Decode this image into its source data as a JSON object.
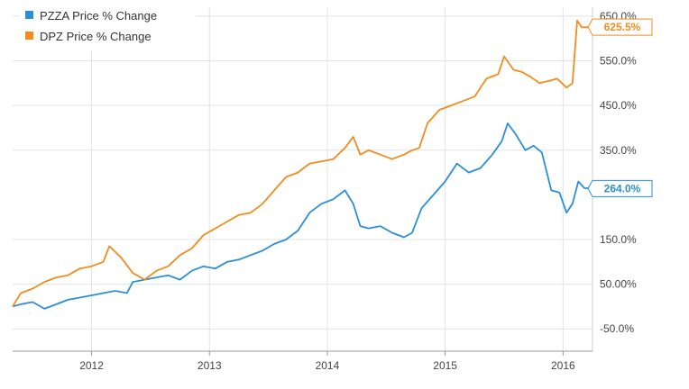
{
  "chart_data": {
    "type": "line",
    "title": "",
    "xlabel": "",
    "ylabel": "",
    "grid": true,
    "legend_position": "top-left",
    "x_ticks": [
      "2012",
      "2013",
      "2014",
      "2015",
      "2016"
    ],
    "y_ticks": [
      "650.0%",
      "550.0%",
      "450.0%",
      "350.0%",
      "150.0%",
      "50.00%",
      "-50.0%"
    ],
    "y_tick_values": [
      650,
      550,
      450,
      350,
      150,
      50,
      -50
    ],
    "ylim": [
      -100,
      670
    ],
    "xlim": [
      2011.33,
      2016.25
    ],
    "series": [
      {
        "name": "PZZA Price % Change",
        "color": "#2b8fd8",
        "end_label": "264.0%",
        "x": [
          2011.33,
          2011.4,
          2011.5,
          2011.6,
          2011.7,
          2011.8,
          2011.9,
          2012.0,
          2012.1,
          2012.2,
          2012.3,
          2012.35,
          2012.45,
          2012.55,
          2012.65,
          2012.75,
          2012.85,
          2012.95,
          2013.05,
          2013.15,
          2013.25,
          2013.35,
          2013.45,
          2013.55,
          2013.65,
          2013.75,
          2013.85,
          2013.95,
          2014.05,
          2014.15,
          2014.22,
          2014.28,
          2014.35,
          2014.45,
          2014.55,
          2014.65,
          2014.72,
          2014.8,
          2014.9,
          2015.0,
          2015.1,
          2015.2,
          2015.3,
          2015.4,
          2015.48,
          2015.53,
          2015.6,
          2015.68,
          2015.75,
          2015.82,
          2015.9,
          2015.97,
          2016.03,
          2016.08,
          2016.13,
          2016.18,
          2016.25
        ],
        "y": [
          0,
          5,
          10,
          -5,
          5,
          15,
          20,
          25,
          30,
          35,
          30,
          55,
          60,
          65,
          70,
          60,
          80,
          90,
          85,
          100,
          105,
          115,
          125,
          140,
          150,
          170,
          210,
          230,
          240,
          260,
          230,
          180,
          175,
          180,
          165,
          155,
          165,
          220,
          250,
          280,
          320,
          300,
          310,
          340,
          370,
          410,
          385,
          350,
          360,
          345,
          260,
          255,
          210,
          230,
          280,
          265,
          264
        ]
      },
      {
        "name": "DPZ Price % Change",
        "color": "#f28c1e",
        "end_label": "625.5%",
        "x": [
          2011.33,
          2011.4,
          2011.5,
          2011.6,
          2011.7,
          2011.8,
          2011.9,
          2012.0,
          2012.1,
          2012.15,
          2012.25,
          2012.35,
          2012.45,
          2012.55,
          2012.65,
          2012.75,
          2012.85,
          2012.95,
          2013.05,
          2013.15,
          2013.25,
          2013.35,
          2013.45,
          2013.55,
          2013.65,
          2013.75,
          2013.85,
          2013.95,
          2014.05,
          2014.15,
          2014.22,
          2014.28,
          2014.35,
          2014.45,
          2014.55,
          2014.65,
          2014.72,
          2014.78,
          2014.85,
          2014.95,
          2015.05,
          2015.15,
          2015.25,
          2015.35,
          2015.45,
          2015.5,
          2015.58,
          2015.65,
          2015.72,
          2015.8,
          2015.88,
          2015.95,
          2016.03,
          2016.08,
          2016.12,
          2016.16,
          2016.2,
          2016.25
        ],
        "y": [
          0,
          30,
          40,
          55,
          65,
          70,
          85,
          90,
          100,
          135,
          110,
          75,
          60,
          80,
          90,
          115,
          130,
          160,
          175,
          190,
          205,
          210,
          230,
          260,
          290,
          300,
          320,
          325,
          330,
          355,
          380,
          340,
          350,
          340,
          330,
          340,
          350,
          355,
          410,
          440,
          450,
          460,
          470,
          510,
          520,
          560,
          530,
          525,
          515,
          500,
          505,
          510,
          490,
          500,
          640,
          625,
          625,
          625.5
        ]
      }
    ]
  }
}
